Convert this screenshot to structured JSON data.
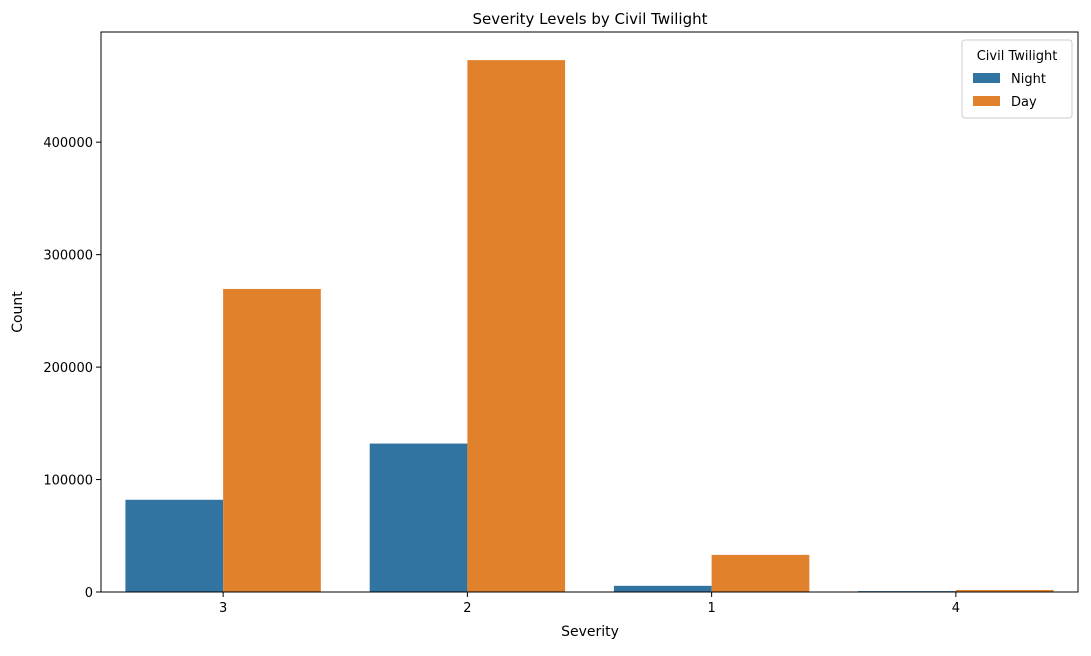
{
  "chart_data": {
    "type": "bar",
    "title": "Severity Levels by Civil Twilight",
    "xlabel": "Severity",
    "ylabel": "Count",
    "categories": [
      "3",
      "2",
      "1",
      "4"
    ],
    "series": [
      {
        "name": "Night",
        "color": "#3274a1",
        "values": [
          82000,
          132000,
          5500,
          800
        ]
      },
      {
        "name": "Day",
        "color": "#e1812c",
        "values": [
          269500,
          473000,
          33000,
          1800
        ]
      }
    ],
    "ylim": [
      0,
      498000
    ],
    "yticks": [
      0,
      100000,
      200000,
      300000,
      400000
    ],
    "ytick_labels": [
      "0",
      "100000",
      "200000",
      "300000",
      "400000"
    ],
    "grid": false,
    "legend": {
      "title": "Civil Twilight",
      "placement": "top-right"
    }
  }
}
